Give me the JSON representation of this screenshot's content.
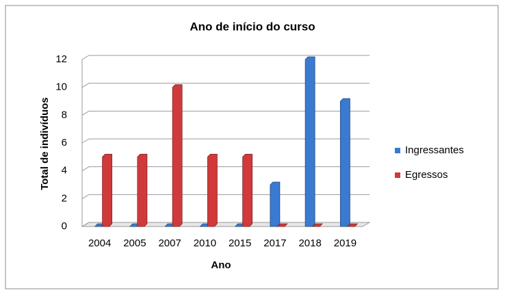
{
  "chart_data": {
    "type": "bar",
    "title": "Ano de início do curso",
    "x_label": "Ano",
    "y_label": "Total de indivíduos",
    "categories": [
      "2004",
      "2005",
      "2007",
      "2010",
      "2015",
      "2017",
      "2018",
      "2019"
    ],
    "series": [
      {
        "name": "Ingressantes",
        "color": "#3a7ad0",
        "values": [
          0,
          0,
          0,
          0,
          0,
          3,
          12,
          9
        ]
      },
      {
        "name": "Egressos",
        "color": "#d03a3a",
        "values": [
          5,
          5,
          10,
          5,
          5,
          0,
          0,
          0
        ]
      }
    ],
    "ylim": [
      0,
      12
    ],
    "yticks": [
      0,
      2,
      4,
      6,
      8,
      10,
      12
    ],
    "grid": true,
    "legend": "right"
  }
}
